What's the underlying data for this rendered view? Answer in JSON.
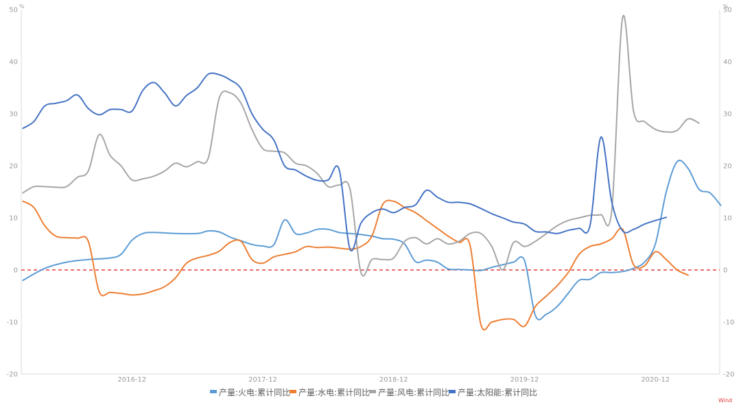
{
  "chart_data": {
    "type": "line",
    "y_unit_left": "%",
    "y_unit_right": "%",
    "ylim": [
      -20,
      50
    ],
    "yticks": [
      -20,
      -10,
      0,
      10,
      20,
      30,
      40,
      50
    ],
    "x_range": [
      "2016-02",
      "2021-05"
    ],
    "x_tick_labels": [
      {
        "date": "2016-12",
        "label": "2016-12"
      },
      {
        "date": "2017-12",
        "label": "2017-12"
      },
      {
        "date": "2018-12",
        "label": "2018-12"
      },
      {
        "date": "2019-12",
        "label": "2019-12"
      },
      {
        "date": "2020-12",
        "label": "2020-12"
      }
    ],
    "reference_line": {
      "y": 0,
      "color": "#e03a3a",
      "style": "dashed"
    },
    "legend_position": "bottom",
    "source_label": "Wind",
    "series": [
      {
        "name": "产量:火电:累计同比",
        "color": "#5b9bd5",
        "points": [
          [
            "2016-02",
            -2.0
          ],
          [
            "2016-04",
            0.3
          ],
          [
            "2016-06",
            1.5
          ],
          [
            "2016-08",
            2.0
          ],
          [
            "2016-10",
            2.3
          ],
          [
            "2016-11",
            3.0
          ],
          [
            "2016-12",
            5.7
          ],
          [
            "2017-01",
            7.0
          ],
          [
            "2017-02",
            7.2
          ],
          [
            "2017-04",
            7.0
          ],
          [
            "2017-06",
            7.0
          ],
          [
            "2017-07",
            7.5
          ],
          [
            "2017-08",
            7.3
          ],
          [
            "2017-09",
            6.3
          ],
          [
            "2017-10",
            5.6
          ],
          [
            "2017-11",
            4.9
          ],
          [
            "2017-12",
            4.6
          ],
          [
            "2018-01",
            4.8
          ],
          [
            "2018-02",
            9.6
          ],
          [
            "2018-03",
            7.0
          ],
          [
            "2018-04",
            7.1
          ],
          [
            "2018-05",
            7.8
          ],
          [
            "2018-06",
            7.8
          ],
          [
            "2018-07",
            7.2
          ],
          [
            "2018-08",
            7.0
          ],
          [
            "2018-09",
            6.8
          ],
          [
            "2018-10",
            6.5
          ],
          [
            "2018-11",
            6.0
          ],
          [
            "2018-12",
            5.9
          ],
          [
            "2019-01",
            5.0
          ],
          [
            "2019-02",
            1.6
          ],
          [
            "2019-03",
            1.9
          ],
          [
            "2019-04",
            1.5
          ],
          [
            "2019-05",
            0.2
          ],
          [
            "2019-06",
            0.1
          ],
          [
            "2019-07",
            0.0
          ],
          [
            "2019-08",
            -0.1
          ],
          [
            "2019-09",
            0.5
          ],
          [
            "2019-10",
            1.0
          ],
          [
            "2019-11",
            1.5
          ],
          [
            "2019-12",
            1.8
          ],
          [
            "2020-01",
            -8.8
          ],
          [
            "2020-02",
            -8.5
          ],
          [
            "2020-03",
            -7.0
          ],
          [
            "2020-04",
            -4.5
          ],
          [
            "2020-05",
            -2.0
          ],
          [
            "2020-06",
            -1.8
          ],
          [
            "2020-07",
            -0.5
          ],
          [
            "2020-08",
            -0.5
          ],
          [
            "2020-09",
            -0.3
          ],
          [
            "2020-10",
            0.3
          ],
          [
            "2020-11",
            1.5
          ],
          [
            "2020-12",
            5.0
          ],
          [
            "2021-01",
            15.0
          ],
          [
            "2021-02",
            20.8
          ],
          [
            "2021-03",
            19.5
          ],
          [
            "2021-04",
            15.5
          ],
          [
            "2021-05",
            14.8
          ],
          [
            "2021-06",
            12.4
          ]
        ]
      },
      {
        "name": "产量:水电:累计同比",
        "color": "#ed7d31",
        "points": [
          [
            "2016-02",
            13.2
          ],
          [
            "2016-03",
            12.0
          ],
          [
            "2016-04",
            8.5
          ],
          [
            "2016-05",
            6.5
          ],
          [
            "2016-06",
            6.2
          ],
          [
            "2016-07",
            6.1
          ],
          [
            "2016-08",
            5.5
          ],
          [
            "2016-09",
            -4.2
          ],
          [
            "2016-10",
            -4.3
          ],
          [
            "2016-11",
            -4.5
          ],
          [
            "2016-12",
            -4.8
          ],
          [
            "2017-01",
            -4.6
          ],
          [
            "2017-02",
            -4.0
          ],
          [
            "2017-03",
            -3.2
          ],
          [
            "2017-04",
            -1.5
          ],
          [
            "2017-05",
            1.3
          ],
          [
            "2017-06",
            2.3
          ],
          [
            "2017-07",
            2.8
          ],
          [
            "2017-08",
            3.6
          ],
          [
            "2017-09",
            5.3
          ],
          [
            "2017-10",
            5.5
          ],
          [
            "2017-11",
            2.0
          ],
          [
            "2017-12",
            1.3
          ],
          [
            "2018-01",
            2.5
          ],
          [
            "2018-02",
            3.0
          ],
          [
            "2018-03",
            3.5
          ],
          [
            "2018-04",
            4.5
          ],
          [
            "2018-05",
            4.3
          ],
          [
            "2018-06",
            4.4
          ],
          [
            "2018-07",
            4.2
          ],
          [
            "2018-08",
            4.0
          ],
          [
            "2018-09",
            4.5
          ],
          [
            "2018-10",
            6.5
          ],
          [
            "2018-11",
            12.6
          ],
          [
            "2018-12",
            13.2
          ],
          [
            "2019-01",
            12.0
          ],
          [
            "2019-02",
            11.0
          ],
          [
            "2019-03",
            9.5
          ],
          [
            "2019-04",
            8.0
          ],
          [
            "2019-05",
            6.5
          ],
          [
            "2019-06",
            5.3
          ],
          [
            "2019-07",
            4.8
          ],
          [
            "2019-08",
            -10.5
          ],
          [
            "2019-09",
            -10.0
          ],
          [
            "2019-10",
            -9.5
          ],
          [
            "2019-11",
            -9.5
          ],
          [
            "2019-12",
            -10.8
          ],
          [
            "2020-01",
            -7.0
          ],
          [
            "2020-02",
            -5.0
          ],
          [
            "2020-03",
            -3.0
          ],
          [
            "2020-04",
            -0.5
          ],
          [
            "2020-05",
            3.0
          ],
          [
            "2020-06",
            4.5
          ],
          [
            "2020-07",
            5.0
          ],
          [
            "2020-08",
            6.0
          ],
          [
            "2020-09",
            7.8
          ],
          [
            "2020-10",
            1.0
          ],
          [
            "2020-11",
            0.8
          ],
          [
            "2020-12",
            3.5
          ],
          [
            "2021-01",
            2.0
          ],
          [
            "2021-02",
            0.0
          ],
          [
            "2021-03",
            -1.0
          ]
        ]
      },
      {
        "name": "产量:风电:累计同比",
        "color": "#a5a5a5",
        "points": [
          [
            "2016-02",
            14.8
          ],
          [
            "2016-03",
            16.0
          ],
          [
            "2016-04",
            16.0
          ],
          [
            "2016-05",
            15.9
          ],
          [
            "2016-06",
            16.0
          ],
          [
            "2016-07",
            17.8
          ],
          [
            "2016-08",
            19.0
          ],
          [
            "2016-09",
            26.0
          ],
          [
            "2016-10",
            22.0
          ],
          [
            "2016-11",
            20.0
          ],
          [
            "2016-12",
            17.3
          ],
          [
            "2017-01",
            17.5
          ],
          [
            "2017-02",
            18.0
          ],
          [
            "2017-03",
            19.0
          ],
          [
            "2017-04",
            20.5
          ],
          [
            "2017-05",
            19.8
          ],
          [
            "2017-06",
            20.8
          ],
          [
            "2017-07",
            21.5
          ],
          [
            "2017-08",
            33.0
          ],
          [
            "2017-09",
            34.0
          ],
          [
            "2017-10",
            32.0
          ],
          [
            "2017-11",
            27.0
          ],
          [
            "2017-12",
            23.3
          ],
          [
            "2018-01",
            22.8
          ],
          [
            "2018-02",
            22.5
          ],
          [
            "2018-03",
            20.5
          ],
          [
            "2018-04",
            20.0
          ],
          [
            "2018-05",
            18.5
          ],
          [
            "2018-06",
            16.0
          ],
          [
            "2018-07",
            16.3
          ],
          [
            "2018-08",
            15.5
          ],
          [
            "2018-09",
            -0.5
          ],
          [
            "2018-10",
            2.0
          ],
          [
            "2018-11",
            2.0
          ],
          [
            "2018-12",
            2.3
          ],
          [
            "2019-01",
            5.5
          ],
          [
            "2019-02",
            6.2
          ],
          [
            "2019-03",
            5.0
          ],
          [
            "2019-04",
            6.0
          ],
          [
            "2019-05",
            5.0
          ],
          [
            "2019-06",
            5.5
          ],
          [
            "2019-07",
            7.0
          ],
          [
            "2019-08",
            7.0
          ],
          [
            "2019-09",
            4.5
          ],
          [
            "2019-10",
            0.0
          ],
          [
            "2019-11",
            5.3
          ],
          [
            "2019-12",
            4.5
          ],
          [
            "2020-01",
            5.5
          ],
          [
            "2020-02",
            7.0
          ],
          [
            "2020-03",
            8.5
          ],
          [
            "2020-04",
            9.5
          ],
          [
            "2020-05",
            10.0
          ],
          [
            "2020-06",
            10.5
          ],
          [
            "2020-07",
            10.6
          ],
          [
            "2020-08",
            11.5
          ],
          [
            "2020-09",
            48.5
          ],
          [
            "2020-10",
            30.5
          ],
          [
            "2020-11",
            28.5
          ],
          [
            "2020-12",
            27.0
          ],
          [
            "2021-01",
            26.5
          ],
          [
            "2021-02",
            26.8
          ],
          [
            "2021-03",
            29.0
          ],
          [
            "2021-04",
            28.2
          ]
        ]
      },
      {
        "name": "产量:太阳能:累计同比",
        "color": "#4472c4",
        "points": [
          [
            "2016-02",
            27.2
          ],
          [
            "2016-03",
            28.5
          ],
          [
            "2016-04",
            31.5
          ],
          [
            "2016-05",
            32.0
          ],
          [
            "2016-06",
            32.5
          ],
          [
            "2016-07",
            33.6
          ],
          [
            "2016-08",
            31.0
          ],
          [
            "2016-09",
            29.8
          ],
          [
            "2016-10",
            30.8
          ],
          [
            "2016-11",
            30.8
          ],
          [
            "2016-12",
            30.5
          ],
          [
            "2017-01",
            34.5
          ],
          [
            "2017-02",
            36.0
          ],
          [
            "2017-03",
            34.0
          ],
          [
            "2017-04",
            31.5
          ],
          [
            "2017-05",
            33.5
          ],
          [
            "2017-06",
            35.0
          ],
          [
            "2017-07",
            37.6
          ],
          [
            "2017-08",
            37.5
          ],
          [
            "2017-09",
            36.5
          ],
          [
            "2017-10",
            34.8
          ],
          [
            "2017-11",
            30.0
          ],
          [
            "2017-12",
            27.0
          ],
          [
            "2018-01",
            25.0
          ],
          [
            "2018-02",
            20.0
          ],
          [
            "2018-03",
            19.2
          ],
          [
            "2018-04",
            18.0
          ],
          [
            "2018-05",
            17.2
          ],
          [
            "2018-06",
            17.3
          ],
          [
            "2018-07",
            19.3
          ],
          [
            "2018-08",
            4.0
          ],
          [
            "2018-09",
            9.0
          ],
          [
            "2018-10",
            11.0
          ],
          [
            "2018-11",
            11.7
          ],
          [
            "2018-12",
            11.0
          ],
          [
            "2019-01",
            12.0
          ],
          [
            "2019-02",
            12.5
          ],
          [
            "2019-03",
            15.3
          ],
          [
            "2019-04",
            14.0
          ],
          [
            "2019-05",
            13.0
          ],
          [
            "2019-06",
            13.0
          ],
          [
            "2019-07",
            12.7
          ],
          [
            "2019-08",
            11.8
          ],
          [
            "2019-09",
            10.8
          ],
          [
            "2019-10",
            10.0
          ],
          [
            "2019-11",
            9.2
          ],
          [
            "2019-12",
            8.8
          ],
          [
            "2020-01",
            7.4
          ],
          [
            "2020-02",
            7.3
          ],
          [
            "2020-03",
            7.0
          ],
          [
            "2020-04",
            7.6
          ],
          [
            "2020-05",
            8.0
          ],
          [
            "2020-06",
            8.5
          ],
          [
            "2020-07",
            25.5
          ],
          [
            "2020-08",
            13.0
          ],
          [
            "2020-09",
            7.5
          ],
          [
            "2020-10",
            7.8
          ],
          [
            "2020-11",
            8.8
          ],
          [
            "2020-12",
            9.5
          ],
          [
            "2021-01",
            10.1
          ]
        ]
      }
    ]
  }
}
